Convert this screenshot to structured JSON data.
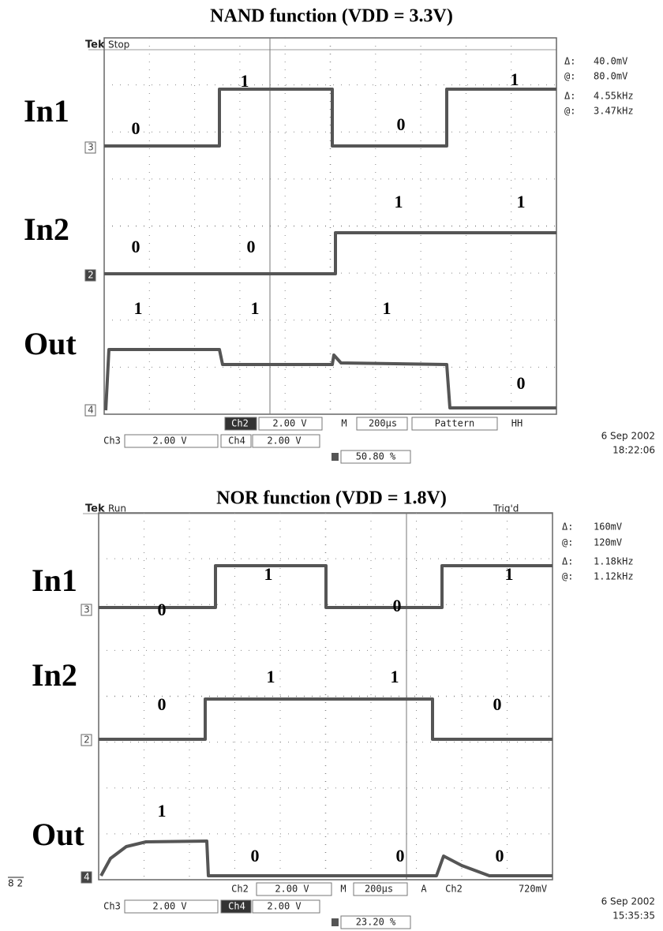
{
  "panels": [
    {
      "title": "NAND function (VDD = 3.3V)",
      "brand": "Tek",
      "status": "Stop",
      "signals": [
        "In1",
        "In2",
        "Out"
      ],
      "channel_markers": [
        "3",
        "2",
        "4"
      ],
      "logic_labels": [
        "0",
        "1",
        "0",
        "1",
        "1",
        "1",
        "0",
        "0",
        "1",
        "1",
        "1",
        "0"
      ],
      "readouts": [
        "Δ:",
        "40.0mV",
        "@:",
        "80.0mV",
        "Δ:",
        "4.55kHz",
        "@:",
        "3.47kHz"
      ],
      "row1": [
        "Ch2",
        "2.00 V",
        "M",
        "200µs",
        "Pattern",
        "HH"
      ],
      "row2": [
        "Ch3",
        "2.00 V",
        "Ch4",
        "2.00 V"
      ],
      "trigger_position": "50.80 %",
      "date": "6 Sep 2002",
      "time": "18:22:06"
    },
    {
      "title": "NOR function (VDD = 1.8V)",
      "brand": "Tek",
      "status": "Run",
      "trigger_state": "Trig'd",
      "signals": [
        "In1",
        "In2",
        "Out"
      ],
      "channel_markers": [
        "3",
        "2",
        "4"
      ],
      "logic_labels": [
        "0",
        "1",
        "0",
        "1",
        "0",
        "1",
        "1",
        "0",
        "1",
        "0",
        "0",
        "0"
      ],
      "readouts": [
        "Δ:",
        "160mV",
        "@:",
        "120mV",
        "Δ:",
        "1.18kHz",
        "@:",
        "1.12kHz"
      ],
      "row1": [
        "Ch2",
        "2.00 V",
        "M",
        "200µs",
        "A",
        "Ch2",
        "720mV"
      ],
      "row2": [
        "Ch3",
        "2.00 V",
        "Ch4",
        "2.00 V"
      ],
      "trigger_position": "23.20 %",
      "date": "6 Sep 2002",
      "time": "15:35:35",
      "side_note": "8 2"
    }
  ]
}
